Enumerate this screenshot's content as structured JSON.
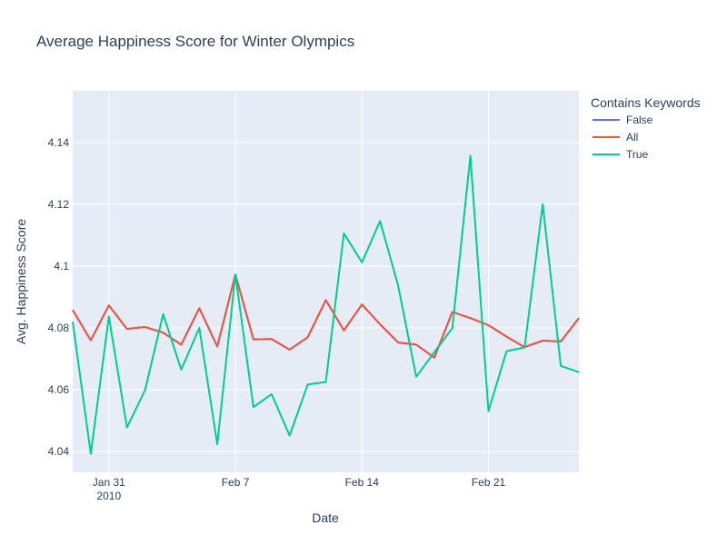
{
  "chart_data": {
    "type": "line",
    "title": "Average Happiness Score for Winter Olympics",
    "xlabel": "Date",
    "ylabel": "Avg. Happiness Score",
    "x": [
      "2010-01-29",
      "2010-01-30",
      "2010-01-31",
      "2010-02-01",
      "2010-02-02",
      "2010-02-03",
      "2010-02-04",
      "2010-02-05",
      "2010-02-06",
      "2010-02-07",
      "2010-02-08",
      "2010-02-09",
      "2010-02-10",
      "2010-02-11",
      "2010-02-12",
      "2010-02-13",
      "2010-02-14",
      "2010-02-15",
      "2010-02-16",
      "2010-02-17",
      "2010-02-18",
      "2010-02-19",
      "2010-02-20",
      "2010-02-21",
      "2010-02-22",
      "2010-02-23",
      "2010-02-24",
      "2010-02-25",
      "2010-02-26"
    ],
    "xlim": [
      "2010-01-29",
      "2010-02-26"
    ],
    "x_ticks": [
      {
        "date": "2010-01-31",
        "label": "Jan 31",
        "sublabel": "2010"
      },
      {
        "date": "2010-02-07",
        "label": "Feb 7"
      },
      {
        "date": "2010-02-14",
        "label": "Feb 14"
      },
      {
        "date": "2010-02-21",
        "label": "Feb 21"
      }
    ],
    "ylim": [
      4.0333,
      4.1567
    ],
    "y_ticks": [
      4.04,
      4.06,
      4.08,
      4.1,
      4.12,
      4.14
    ],
    "y_tick_labels": [
      "4.04",
      "4.06",
      "4.08",
      "4.1",
      "4.12",
      "4.14"
    ],
    "grid": true,
    "legend_title": "Contains Keywords",
    "legend_position": "right",
    "series": [
      {
        "name": "False",
        "color": "#636efa",
        "values": [
          4.0858,
          4.076,
          4.0873,
          4.0797,
          4.0803,
          4.0785,
          4.0746,
          4.0864,
          4.074,
          4.0973,
          4.0763,
          4.0764,
          4.073,
          4.077,
          4.089,
          4.0792,
          4.0876,
          4.0812,
          4.0753,
          4.0746,
          4.0704,
          4.0852,
          4.0832,
          4.0809,
          4.0772,
          4.0738,
          4.0759,
          4.0756,
          4.0832
        ]
      },
      {
        "name": "All",
        "color": "#ef553b",
        "values": [
          4.0858,
          4.076,
          4.0873,
          4.0797,
          4.0803,
          4.0785,
          4.0746,
          4.0864,
          4.074,
          4.0973,
          4.0763,
          4.0764,
          4.073,
          4.077,
          4.089,
          4.0792,
          4.0876,
          4.0812,
          4.0753,
          4.0746,
          4.0704,
          4.0852,
          4.0832,
          4.0809,
          4.0772,
          4.0738,
          4.0759,
          4.0756,
          4.0832
        ]
      },
      {
        "name": "True",
        "color": "#00cc96",
        "values": [
          4.082,
          4.0393,
          4.0837,
          4.0478,
          4.0599,
          4.0845,
          4.0665,
          4.08,
          4.0424,
          4.0973,
          4.0544,
          4.0586,
          4.0452,
          4.0617,
          4.0625,
          4.1106,
          4.1012,
          4.1146,
          4.0937,
          4.0642,
          4.0721,
          4.08,
          4.1357,
          4.0531,
          4.0725,
          4.0737,
          4.12,
          4.0677,
          4.0657
        ]
      }
    ]
  }
}
